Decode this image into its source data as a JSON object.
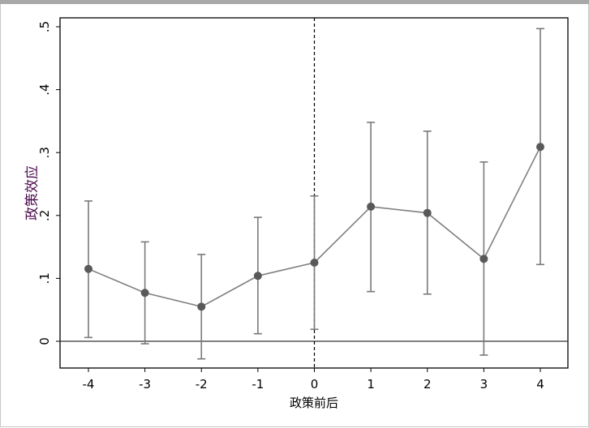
{
  "chart_data": {
    "type": "line",
    "xlabel": "政策前后",
    "ylabel": "政策效应",
    "x": [
      -4,
      -3,
      -2,
      -1,
      0,
      1,
      2,
      3,
      4
    ],
    "xticks": [
      "-4",
      "-3",
      "-2",
      "-1",
      "0",
      "1",
      "2",
      "3",
      "4"
    ],
    "yticks": [
      "0",
      ".1",
      ".2",
      ".3",
      ".4",
      ".5"
    ],
    "ytick_values": [
      0,
      0.1,
      0.2,
      0.3,
      0.4,
      0.5
    ],
    "xlim": [
      -4.5,
      4.5
    ],
    "ylim": [
      -0.043,
      0.514
    ],
    "series": [
      {
        "estimate": [
          0.115,
          0.077,
          0.055,
          0.104,
          0.125,
          0.214,
          0.204,
          0.131,
          0.309
        ],
        "ci_lower": [
          0.006,
          -0.004,
          -0.028,
          0.012,
          0.019,
          0.079,
          0.075,
          -0.022,
          0.122
        ],
        "ci_upper": [
          0.223,
          0.158,
          0.138,
          0.197,
          0.231,
          0.348,
          0.334,
          0.285,
          0.497
        ]
      }
    ],
    "reference_lines": {
      "vertical_x": 0,
      "vertical_style": "dashed",
      "horizontal_y": 0
    },
    "grid": false,
    "colors": {
      "line": "#808080",
      "marker": "#595959",
      "ci": "#7a7a7a",
      "ylabel": "#4b0a4b",
      "axis": "#000000"
    }
  }
}
